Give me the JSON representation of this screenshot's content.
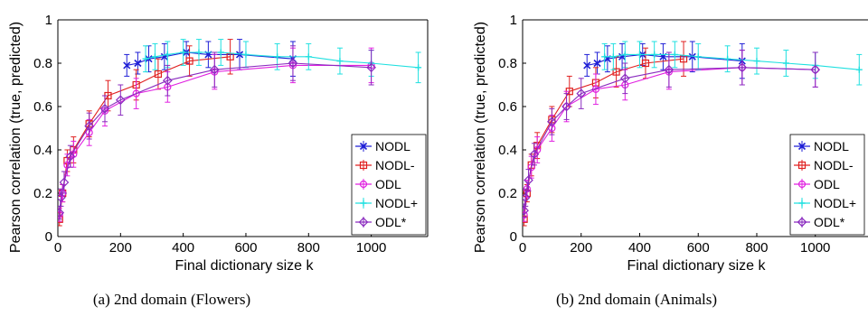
{
  "chart_data": [
    {
      "type": "line",
      "caption": "(a)  2nd domain (Flowers)",
      "xlabel": "Final dictionary size k",
      "ylabel": "Pearson correlation (true, predicted)",
      "xlim": [
        0,
        1180
      ],
      "ylim": [
        0,
        1
      ],
      "xticks": [
        "0",
        "200",
        "400",
        "600",
        "800",
        "1000"
      ],
      "yticks": [
        "0",
        "0.2",
        "0.4",
        "0.6",
        "0.8",
        "1"
      ],
      "legend_position": "lower-right",
      "series": [
        {
          "name": "NODL",
          "color": "#1f1fd6",
          "marker": "x",
          "x": [
            220,
            255,
            290,
            340,
            410,
            480,
            580,
            750
          ],
          "y": [
            0.79,
            0.8,
            0.82,
            0.83,
            0.85,
            0.84,
            0.84,
            0.82
          ],
          "err": [
            0.05,
            0.05,
            0.06,
            0.06,
            0.05,
            0.06,
            0.07,
            0.08
          ]
        },
        {
          "name": "NODL-",
          "color": "#e02020",
          "marker": "square",
          "x": [
            5,
            15,
            30,
            50,
            100,
            160,
            250,
            320,
            420,
            550
          ],
          "y": [
            0.08,
            0.2,
            0.35,
            0.4,
            0.52,
            0.65,
            0.7,
            0.75,
            0.81,
            0.83
          ],
          "err": [
            0.03,
            0.04,
            0.05,
            0.06,
            0.06,
            0.07,
            0.07,
            0.07,
            0.07,
            0.08
          ]
        },
        {
          "name": "ODL",
          "color": "#e020e0",
          "marker": "o",
          "x": [
            5,
            15,
            30,
            50,
            100,
            150,
            250,
            350,
            500,
            750,
            1000
          ],
          "y": [
            0.1,
            0.2,
            0.33,
            0.38,
            0.48,
            0.58,
            0.66,
            0.69,
            0.76,
            0.79,
            0.79
          ],
          "err": [
            0.03,
            0.04,
            0.05,
            0.06,
            0.06,
            0.07,
            0.07,
            0.07,
            0.08,
            0.08,
            0.08
          ]
        },
        {
          "name": "NODL+",
          "color": "#20e0e0",
          "marker": "cross",
          "x": [
            280,
            310,
            350,
            400,
            450,
            520,
            600,
            700,
            800,
            900,
            1000,
            1150
          ],
          "y": [
            0.82,
            0.83,
            0.84,
            0.85,
            0.85,
            0.85,
            0.84,
            0.83,
            0.83,
            0.81,
            0.8,
            0.78
          ],
          "err": [
            0.06,
            0.06,
            0.06,
            0.06,
            0.06,
            0.06,
            0.06,
            0.06,
            0.06,
            0.06,
            0.06,
            0.07
          ]
        },
        {
          "name": "ODL*",
          "color": "#8a2bbf",
          "marker": "diamond",
          "x": [
            5,
            10,
            20,
            40,
            100,
            150,
            200,
            350,
            500,
            750,
            1000
          ],
          "y": [
            0.11,
            0.18,
            0.25,
            0.37,
            0.51,
            0.59,
            0.63,
            0.72,
            0.77,
            0.8,
            0.78
          ],
          "err": [
            0.03,
            0.04,
            0.05,
            0.05,
            0.06,
            0.06,
            0.07,
            0.07,
            0.08,
            0.08,
            0.08
          ]
        }
      ]
    },
    {
      "type": "line",
      "caption": "(b)  2nd domain (Animals)",
      "xlabel": "Final dictionary size k",
      "ylabel": "Pearson correlation (true, predicted)",
      "xlim": [
        0,
        1180
      ],
      "ylim": [
        0,
        1
      ],
      "xticks": [
        "0",
        "200",
        "400",
        "600",
        "800",
        "1000"
      ],
      "yticks": [
        "0",
        "0.2",
        "0.4",
        "0.6",
        "0.8",
        "1"
      ],
      "legend_position": "lower-right",
      "series": [
        {
          "name": "NODL",
          "color": "#1f1fd6",
          "marker": "x",
          "x": [
            220,
            255,
            290,
            340,
            410,
            480,
            580,
            750
          ],
          "y": [
            0.79,
            0.8,
            0.82,
            0.83,
            0.84,
            0.83,
            0.83,
            0.81
          ],
          "err": [
            0.05,
            0.05,
            0.06,
            0.06,
            0.05,
            0.06,
            0.07,
            0.08
          ]
        },
        {
          "name": "NODL-",
          "color": "#e02020",
          "marker": "square",
          "x": [
            5,
            15,
            30,
            50,
            100,
            160,
            250,
            320,
            420,
            550
          ],
          "y": [
            0.08,
            0.2,
            0.33,
            0.42,
            0.54,
            0.67,
            0.71,
            0.76,
            0.8,
            0.82
          ],
          "err": [
            0.03,
            0.04,
            0.05,
            0.06,
            0.06,
            0.07,
            0.07,
            0.07,
            0.07,
            0.08
          ]
        },
        {
          "name": "ODL",
          "color": "#e020e0",
          "marker": "o",
          "x": [
            5,
            15,
            30,
            50,
            100,
            150,
            250,
            350,
            500,
            750,
            1000
          ],
          "y": [
            0.1,
            0.22,
            0.32,
            0.4,
            0.5,
            0.6,
            0.68,
            0.7,
            0.76,
            0.78,
            0.77
          ],
          "err": [
            0.03,
            0.04,
            0.05,
            0.06,
            0.06,
            0.07,
            0.07,
            0.07,
            0.08,
            0.08,
            0.08
          ]
        },
        {
          "name": "NODL+",
          "color": "#20e0e0",
          "marker": "cross",
          "x": [
            280,
            310,
            350,
            400,
            450,
            520,
            600,
            700,
            800,
            900,
            1000,
            1150
          ],
          "y": [
            0.83,
            0.83,
            0.84,
            0.84,
            0.84,
            0.84,
            0.83,
            0.82,
            0.81,
            0.8,
            0.79,
            0.77
          ],
          "err": [
            0.06,
            0.06,
            0.06,
            0.06,
            0.06,
            0.06,
            0.06,
            0.06,
            0.06,
            0.06,
            0.06,
            0.07
          ]
        },
        {
          "name": "ODL*",
          "color": "#8a2bbf",
          "marker": "diamond",
          "x": [
            5,
            10,
            20,
            40,
            100,
            150,
            200,
            350,
            500,
            750,
            1000
          ],
          "y": [
            0.12,
            0.18,
            0.26,
            0.38,
            0.53,
            0.6,
            0.66,
            0.73,
            0.77,
            0.78,
            0.77
          ],
          "err": [
            0.03,
            0.04,
            0.05,
            0.05,
            0.06,
            0.06,
            0.07,
            0.07,
            0.08,
            0.08,
            0.08
          ]
        }
      ]
    }
  ]
}
